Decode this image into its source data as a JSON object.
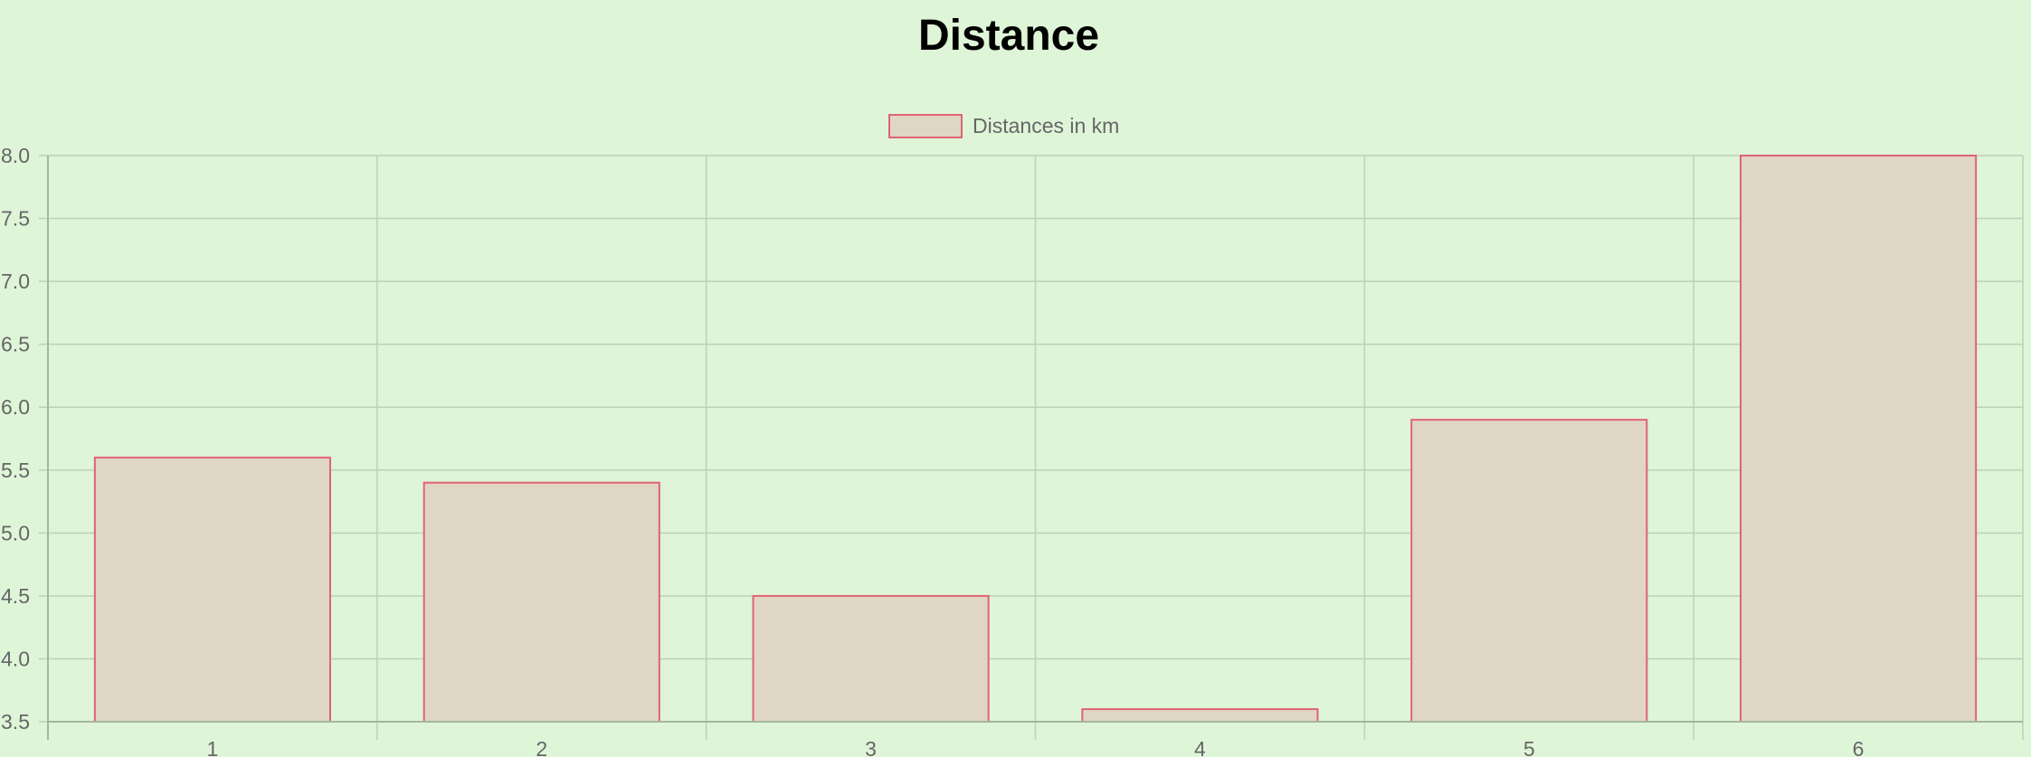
{
  "chart_data": {
    "type": "bar",
    "title": "Distance",
    "categories": [
      "1",
      "2",
      "3",
      "4",
      "5",
      "6"
    ],
    "series": [
      {
        "name": "Distances in km",
        "values": [
          5.6,
          5.4,
          4.5,
          3.6,
          5.9,
          8.0
        ]
      }
    ],
    "xlabel": "",
    "ylabel": "",
    "ylim": [
      3.5,
      8.0
    ],
    "yticks": [
      "3.5",
      "4.0",
      "4.5",
      "5.0",
      "5.5",
      "6.0",
      "6.5",
      "7.0",
      "7.5",
      "8.0"
    ],
    "grid": true,
    "legend": "top-center",
    "colors": {
      "background": "#dff5d8",
      "bar_fill": "#dfd6c4",
      "bar_stroke": "#e06374",
      "grid": "#bcd1b5",
      "axis": "#a3b79c",
      "tick_text": "#666666"
    }
  }
}
